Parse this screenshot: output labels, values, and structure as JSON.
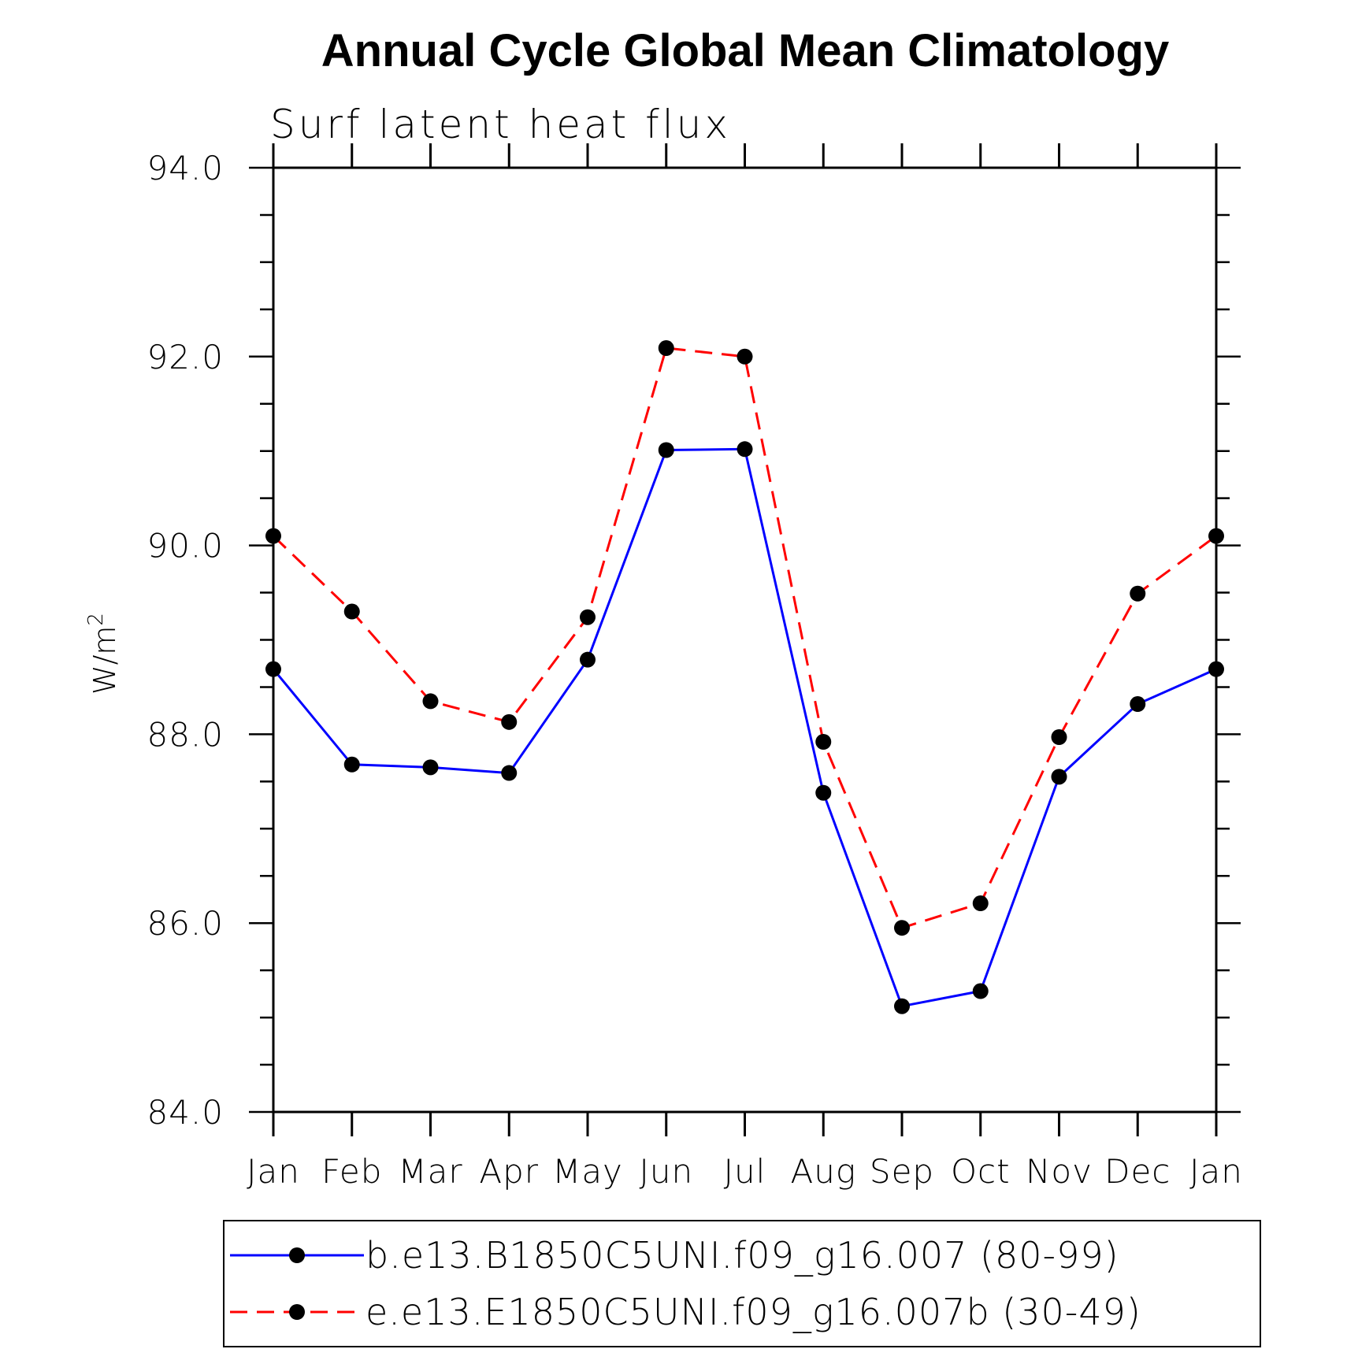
{
  "chart_data": {
    "type": "line",
    "title": "Annual Cycle Global Mean Climatology",
    "subtitle": "Surf latent heat flux",
    "ylabel": "W/m",
    "ylabel_superscript": "2",
    "categories": [
      "Jan",
      "Feb",
      "Mar",
      "Apr",
      "May",
      "Jun",
      "Jul",
      "Aug",
      "Sep",
      "Oct",
      "Nov",
      "Dec",
      "Jan"
    ],
    "ylim": [
      84.0,
      94.0
    ],
    "yticks": [
      "84.0",
      "86.0",
      "88.0",
      "90.0",
      "92.0",
      "94.0"
    ],
    "grid": false,
    "legend_position": "bottom",
    "series": [
      {
        "name": "b.e13.B1850C5UNI.f09_g16.007 (80-99)",
        "color": "#0000ff",
        "dash": "solid",
        "values": [
          88.69,
          87.68,
          87.65,
          87.59,
          88.79,
          91.01,
          91.02,
          87.38,
          85.12,
          85.28,
          87.55,
          88.32,
          88.69
        ]
      },
      {
        "name": "e.e13.E1850C5UNI.f09_g16.007b (30-49)",
        "color": "#ff0000",
        "dash": "dashed",
        "values": [
          90.1,
          89.3,
          88.35,
          88.13,
          89.24,
          92.09,
          92.0,
          87.92,
          85.95,
          86.21,
          87.97,
          89.49,
          90.1
        ]
      }
    ]
  }
}
